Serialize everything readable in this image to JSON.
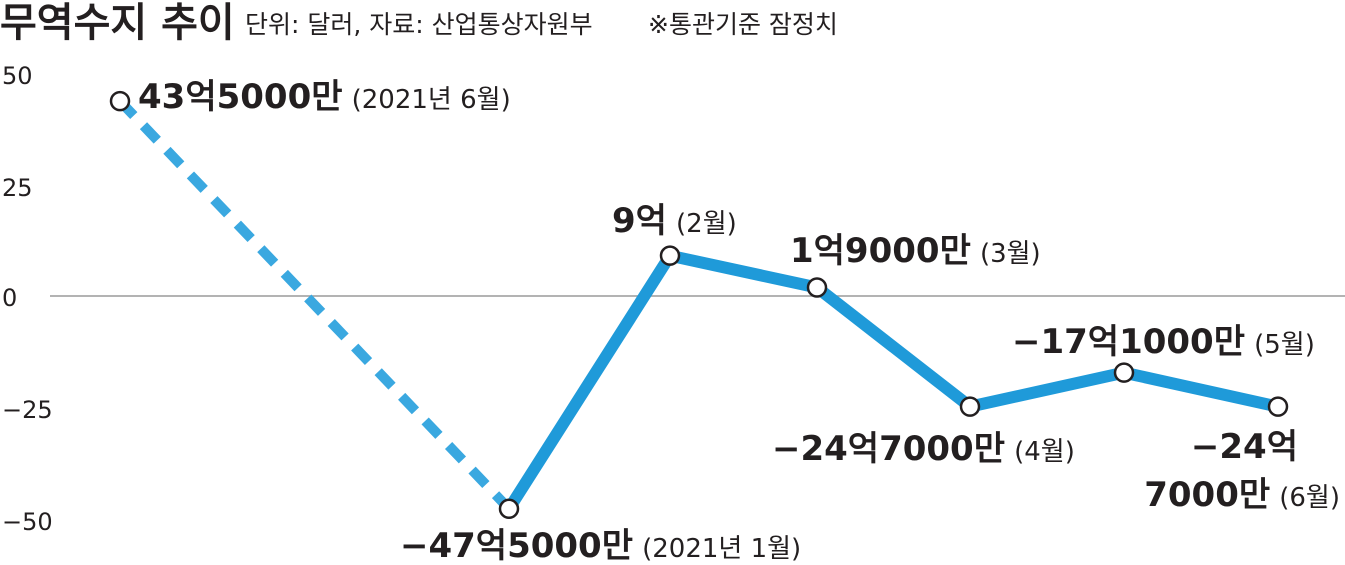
{
  "header": {
    "title": "무역수지 추이",
    "unit": "단위: 달러, 자료: 산업통상자원부",
    "note": "※통관기준 잠정치"
  },
  "chart_data": {
    "type": "line",
    "title": "무역수지 추이",
    "xlabel": "",
    "ylabel": "",
    "ylim": [
      -50,
      50
    ],
    "yticks": [
      "50",
      "25",
      "0",
      "−25",
      "−50"
    ],
    "grid": "zero-line only",
    "series": [
      {
        "style": "dashed",
        "color": "#3aa8e0",
        "points": [
          {
            "x": "2021년 6월",
            "y": 43.5,
            "label_main": "43억5000만",
            "label_sub": "(2021년 6월)"
          },
          {
            "x": "2021년 1월",
            "y": -47.5,
            "label_main": "−47억5000만",
            "label_sub": "(2021년 1월)"
          }
        ]
      },
      {
        "style": "solid",
        "color": "#1f9ad9",
        "points": [
          {
            "x": "2021년 1월",
            "y": -47.5
          },
          {
            "x": "2월",
            "y": 9,
            "label_main": "9억",
            "label_sub": "(2월)"
          },
          {
            "x": "3월",
            "y": 1.9,
            "label_main": "1억9000만",
            "label_sub": "(3월)"
          },
          {
            "x": "4월",
            "y": -24.7,
            "label_main": "−24억7000만",
            "label_sub": "(4월)"
          },
          {
            "x": "5월",
            "y": -17.1,
            "label_main": "−17억1000만",
            "label_sub": "(5월)"
          },
          {
            "x": "6월",
            "y": -24.7,
            "label_main_line1": "−24억",
            "label_main_line2": "7000만",
            "label_sub": "(6월)"
          }
        ]
      }
    ]
  }
}
